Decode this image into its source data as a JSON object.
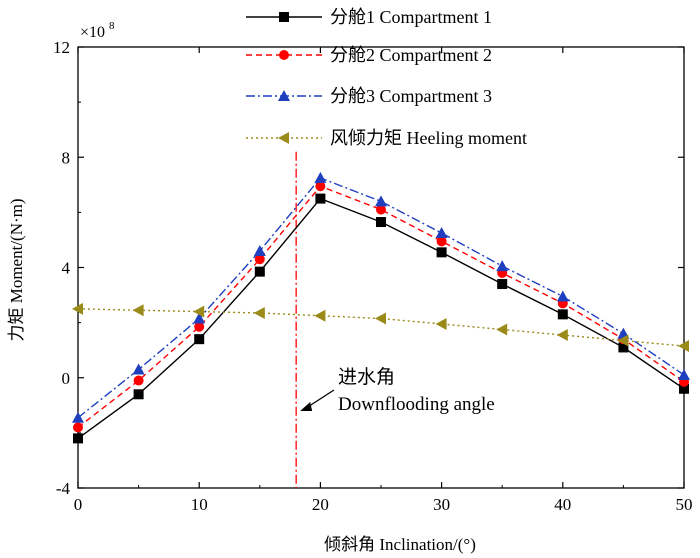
{
  "chart_data": {
    "type": "line",
    "xlabel": "倾斜角 Inclination/(°)",
    "ylabel": "力矩 Moment/(N·m)",
    "y_multiplier": "×10",
    "y_multiplier_exp": "8",
    "xlim": [
      0,
      50
    ],
    "ylim": [
      -4,
      12
    ],
    "x_ticks": [
      0,
      10,
      20,
      30,
      40,
      50
    ],
    "y_ticks": [
      -4,
      0,
      4,
      8,
      12
    ],
    "grid": false,
    "legend_position": "top-right",
    "series": [
      {
        "name": "分舱1 Compartment 1",
        "color": "#000000",
        "line_style": "solid",
        "marker": "square",
        "x": [
          0,
          5,
          10,
          15,
          20,
          25,
          30,
          35,
          40,
          45,
          50
        ],
        "y": [
          -2.2,
          -0.6,
          1.4,
          3.85,
          6.5,
          5.65,
          4.55,
          3.4,
          2.3,
          1.1,
          -0.4
        ]
      },
      {
        "name": "分舱2 Compartment 2",
        "color": "#ff0000",
        "line_style": "dashed",
        "marker": "circle",
        "x": [
          0,
          5,
          10,
          15,
          20,
          25,
          30,
          35,
          40,
          45,
          50
        ],
        "y": [
          -1.8,
          -0.1,
          1.85,
          4.3,
          6.95,
          6.1,
          4.95,
          3.8,
          2.7,
          1.4,
          -0.15
        ]
      },
      {
        "name": "分舱3 Compartment 3",
        "color": "#1f3fbf",
        "line_style": "dashdot",
        "marker": "triangle-up",
        "x": [
          0,
          5,
          10,
          15,
          20,
          25,
          30,
          35,
          40,
          45,
          50
        ],
        "y": [
          -1.45,
          0.3,
          2.15,
          4.6,
          7.25,
          6.4,
          5.25,
          4.05,
          2.95,
          1.6,
          0.1
        ]
      },
      {
        "name": "风倾力矩 Heeling moment",
        "color": "#9a8a1a",
        "line_style": "dotted",
        "marker": "triangle-left",
        "x": [
          0,
          5,
          10,
          15,
          20,
          25,
          30,
          35,
          40,
          45,
          50
        ],
        "y": [
          2.5,
          2.45,
          2.4,
          2.35,
          2.25,
          2.15,
          1.95,
          1.75,
          1.55,
          1.35,
          1.15
        ]
      }
    ],
    "vertical_line": {
      "x": 18,
      "color": "#ff0000",
      "style": "dashdot"
    },
    "annotation": {
      "line1": "进水角",
      "line2": "Downflooding angle"
    }
  }
}
